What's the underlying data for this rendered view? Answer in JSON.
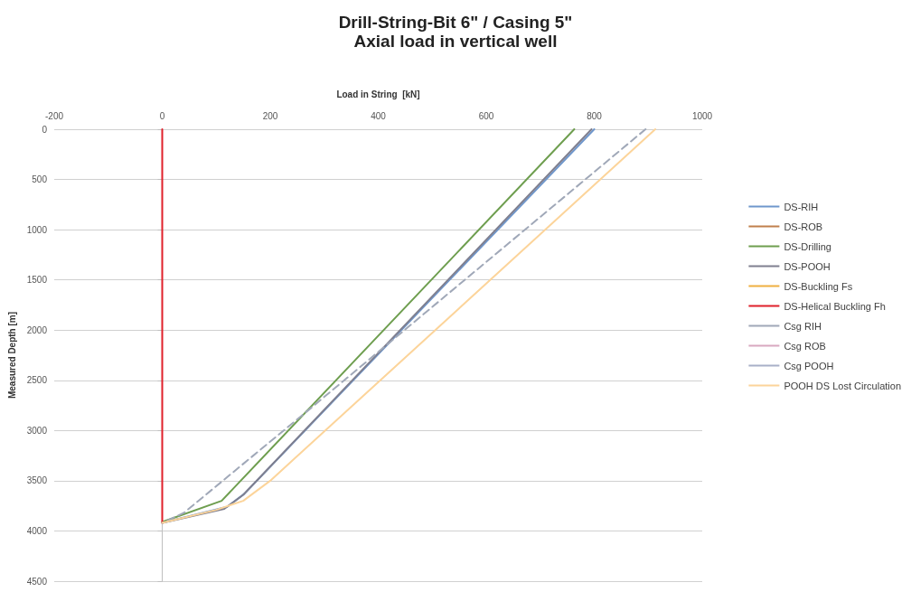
{
  "chart_data": {
    "type": "line",
    "title": "Drill-String-Bit 6\" / Casing 5\"",
    "subtitle": "Axial load in vertical well",
    "xlabel": "Load in String  [kN]",
    "ylabel": "Measured Depth [m]",
    "xlim": [
      -200,
      1000
    ],
    "xticks": [
      -200,
      0,
      200,
      400,
      600,
      800,
      1000
    ],
    "ylim": [
      4500,
      0
    ],
    "yticks": [
      0,
      500,
      1000,
      1500,
      2000,
      2500,
      3000,
      3500,
      4000,
      4500
    ],
    "grid": "y",
    "legend": "right",
    "marker": "none",
    "series": [
      {
        "name": "DS-RIH",
        "color": "#6f97cc",
        "line_style": "solid",
        "x": [
          800,
          152,
          120,
          0
        ],
        "values": [
          0,
          3630,
          3760,
          3920
        ]
      },
      {
        "name": "DS-ROB",
        "color": "#c0804d",
        "line_style": "solid"
      },
      {
        "name": "DS-Drilling",
        "color": "#6e9e4f",
        "line_style": "solid",
        "x": [
          763,
          110,
          0
        ],
        "values": [
          0,
          3700,
          3910
        ]
      },
      {
        "name": "DS-POOH",
        "color": "#7f7f8f",
        "line_style": "solid",
        "x": [
          795,
          150,
          115,
          0
        ],
        "values": [
          0,
          3640,
          3780,
          3920
        ]
      },
      {
        "name": "DS-Buckling Fs",
        "color": "#f0b040",
        "line_style": "solid"
      },
      {
        "name": "DS-Helical Buckling Fh",
        "color": "#e0202a",
        "line_style": "solid",
        "x": [
          0,
          0
        ],
        "values": [
          0,
          3920
        ]
      },
      {
        "name": "Csg RIH",
        "color": "#a0a8b8",
        "line_style": "dashed",
        "x": [
          895,
          270,
          40,
          0
        ],
        "values": [
          0,
          2800,
          3820,
          3920
        ]
      },
      {
        "name": "Csg ROB",
        "color": "#d8a8c0",
        "line_style": "dashed"
      },
      {
        "name": "Csg POOH",
        "color": "#a8b0c8",
        "line_style": "dashed"
      },
      {
        "name": "POOH DS Lost Circulation",
        "color": "#fcd49a",
        "line_style": "solid",
        "x": [
          913,
          200,
          150,
          100,
          0
        ],
        "values": [
          0,
          3500,
          3700,
          3790,
          3920
        ]
      }
    ]
  }
}
